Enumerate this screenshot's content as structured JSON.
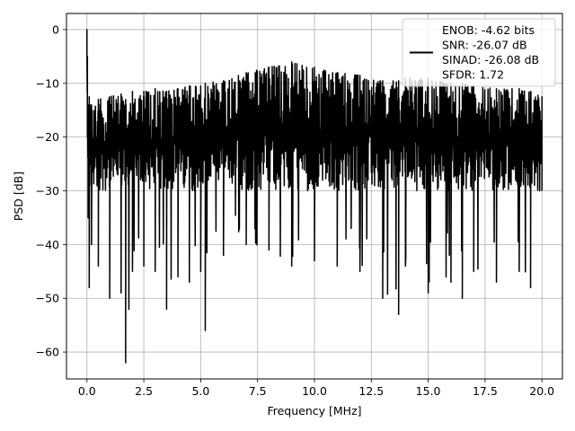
{
  "chart_data": {
    "type": "line",
    "title": "",
    "xlabel": "Frequency [MHz]",
    "ylabel": "PSD [dB]",
    "xlim": [
      -0.9,
      20.9
    ],
    "ylim": [
      -65,
      3
    ],
    "xticks": [
      0.0,
      2.5,
      5.0,
      7.5,
      10.0,
      12.5,
      15.0,
      17.5,
      20.0
    ],
    "xtick_labels": [
      "0.0",
      "2.5",
      "5.0",
      "7.5",
      "10.0",
      "12.5",
      "15.0",
      "17.5",
      "20.0"
    ],
    "yticks": [
      0,
      -10,
      -20,
      -30,
      -40,
      -50,
      -60
    ],
    "ytick_labels": [
      "0",
      "−10",
      "−20",
      "−30",
      "−40",
      "−50",
      "−60"
    ],
    "grid": true,
    "legend_position": "top-right",
    "series": [
      {
        "name": "ENOB: -4.62 bits\nSNR: -26.07 dB\nSINAD: -26.08 dB\nSFDR: 1.72",
        "color": "#000000",
        "x": [
          0.0,
          0.02,
          0.05,
          0.1,
          0.2,
          0.5,
          1.0,
          1.5,
          1.7,
          2.0,
          2.5,
          3.0,
          3.5,
          4.0,
          4.5,
          5.0,
          5.2,
          6.0,
          7.0,
          8.0,
          9.0,
          10.0,
          11.0,
          12.0,
          13.0,
          13.7,
          14.0,
          15.0,
          16.0,
          16.5,
          17.0,
          18.0,
          19.0,
          19.5,
          20.0
        ],
        "upper": [
          0.0,
          -5.0,
          -14.0,
          -12.5,
          -14.0,
          -13.0,
          -12.5,
          -12.0,
          -13.0,
          -11.5,
          -11.5,
          -11.0,
          -11.5,
          -11.0,
          -10.5,
          -10.5,
          -10.0,
          -9.5,
          -8.0,
          -7.0,
          -6.0,
          -7.0,
          -8.0,
          -8.5,
          -9.5,
          -9.5,
          -9.0,
          -9.0,
          -10.0,
          -10.0,
          -10.5,
          -11.0,
          -11.0,
          -11.5,
          -12.5
        ],
        "lower": [
          -5.0,
          -20.0,
          -35.0,
          -48.0,
          -40.0,
          -44.0,
          -50.0,
          -49.0,
          -62.0,
          -45.0,
          -44.0,
          -45.0,
          -52.0,
          -46.0,
          -47.0,
          -45.0,
          -56.0,
          -42.0,
          -40.0,
          -41.0,
          -44.0,
          -43.0,
          -44.0,
          -45.0,
          -50.0,
          -53.0,
          -44.0,
          -49.0,
          -47.0,
          -50.0,
          -45.0,
          -47.0,
          -45.0,
          -48.0,
          -30.0
        ],
        "typical_low": -30.0
      }
    ]
  }
}
